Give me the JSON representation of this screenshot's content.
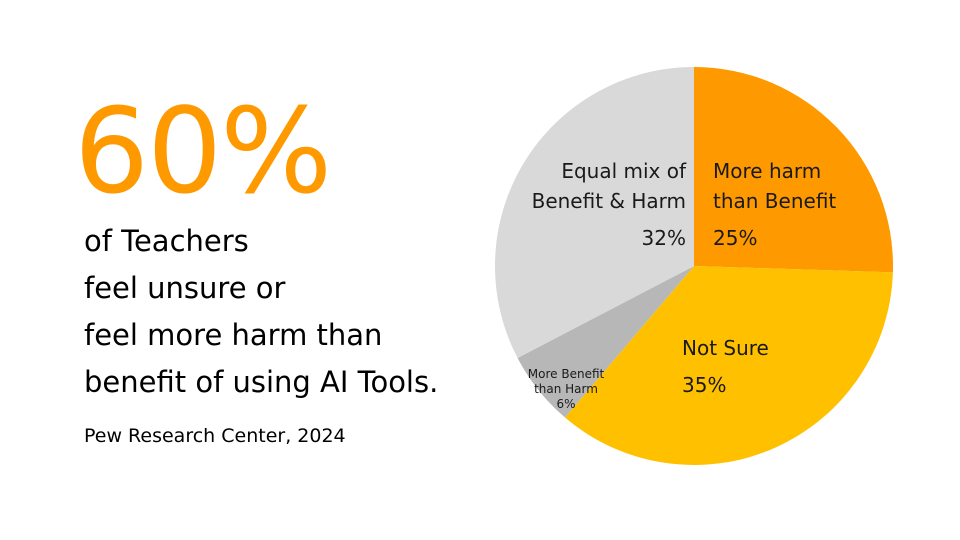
{
  "headline": {
    "stat": "60%",
    "lines": [
      "of Teachers",
      "feel unsure or",
      "feel more harm than",
      "benefit of using AI Tools."
    ],
    "source": "Pew Research Center, 2024"
  },
  "chart_data": {
    "type": "pie",
    "start": "top",
    "direction": "clockwise",
    "slices": [
      {
        "label": "More harm than Benefit",
        "label_lines": [
          "More harm",
          "than Benefit"
        ],
        "value": 25,
        "value_label": "25%",
        "color": "#FF9900"
      },
      {
        "label": "Not Sure",
        "label_lines": [
          "Not Sure"
        ],
        "value": 35,
        "value_label": "35%",
        "color": "#FFC000"
      },
      {
        "label": "More Benefit than Harm",
        "label_lines": [
          "More Benefit",
          "than Harm"
        ],
        "value": 6,
        "value_label": "6%",
        "color": "#B7B7B7"
      },
      {
        "label": "Equal mix of Benefit & Harm",
        "label_lines": [
          "Equal mix of",
          "Benefit & Harm"
        ],
        "value": 32,
        "value_label": "32%",
        "color": "#D9D9D9"
      }
    ]
  }
}
